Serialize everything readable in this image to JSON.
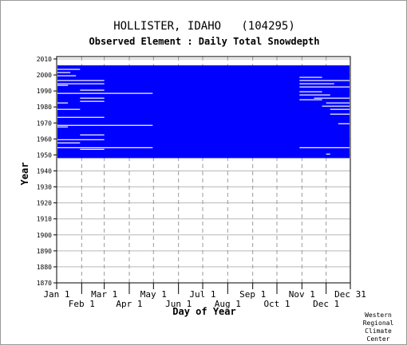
{
  "chart_data": {
    "type": "heatmap",
    "title": "HOLLISTER, IDAHO   (104295)",
    "subtitle": "Observed Element : Daily Total Snowdepth",
    "xlabel": "Day of Year",
    "ylabel": "Year",
    "x_range_day_of_year": [
      1,
      365
    ],
    "ylim": [
      1870,
      2010
    ],
    "y_ticks": [
      1870,
      1880,
      1890,
      1900,
      1910,
      1920,
      1930,
      1940,
      1950,
      1960,
      1970,
      1980,
      1990,
      2000,
      2010
    ],
    "x_ticks_upper": [
      {
        "label": "Jan 1",
        "day": 1
      },
      {
        "label": "Mar 1",
        "day": 60
      },
      {
        "label": "May 1",
        "day": 121
      },
      {
        "label": "Jul 1",
        "day": 182
      },
      {
        "label": "Sep 1",
        "day": 244
      },
      {
        "label": "Nov 1",
        "day": 305
      },
      {
        "label": "Dec 31",
        "day": 365
      }
    ],
    "x_ticks_lower": [
      {
        "label": "Feb 1",
        "day": 32
      },
      {
        "label": "Apr 1",
        "day": 91
      },
      {
        "label": "Jun 1",
        "day": 152
      },
      {
        "label": "Aug 1",
        "day": 213
      },
      {
        "label": "Oct 1",
        "day": 274
      },
      {
        "label": "Dec 1",
        "day": 335
      }
    ],
    "grid": true,
    "data_color": "#0000ff",
    "coverage": {
      "start_year": 1948,
      "end_year": 2005
    },
    "gaps": [
      {
        "year": 2003,
        "day_start": 1,
        "day_end": 30
      },
      {
        "year": 2001,
        "day_start": 1,
        "day_end": 18
      },
      {
        "year": 1999,
        "day_start": 1,
        "day_end": 25
      },
      {
        "year": 1996,
        "day_start": 1,
        "day_end": 60
      },
      {
        "year": 1994,
        "day_start": 1,
        "day_end": 60
      },
      {
        "year": 1993,
        "day_start": 1,
        "day_end": 15
      },
      {
        "year": 1990,
        "day_start": 30,
        "day_end": 60
      },
      {
        "year": 1988,
        "day_start": 1,
        "day_end": 120
      },
      {
        "year": 1985,
        "day_start": 30,
        "day_end": 60
      },
      {
        "year": 1983,
        "day_start": 30,
        "day_end": 60
      },
      {
        "year": 1982,
        "day_start": 1,
        "day_end": 15
      },
      {
        "year": 1978,
        "day_start": 1,
        "day_end": 30
      },
      {
        "year": 1973,
        "day_start": 1,
        "day_end": 60
      },
      {
        "year": 1968,
        "day_start": 1,
        "day_end": 120
      },
      {
        "year": 1967,
        "day_start": 1,
        "day_end": 15
      },
      {
        "year": 1962,
        "day_start": 30,
        "day_end": 60
      },
      {
        "year": 1959,
        "day_start": 1,
        "day_end": 60
      },
      {
        "year": 1957,
        "day_start": 1,
        "day_end": 30
      },
      {
        "year": 1954,
        "day_start": 1,
        "day_end": 120
      },
      {
        "year": 1953,
        "day_start": 30,
        "day_end": 60
      },
      {
        "year": 1998,
        "day_start": 302,
        "day_end": 330
      },
      {
        "year": 1996,
        "day_start": 302,
        "day_end": 365
      },
      {
        "year": 1994,
        "day_start": 302,
        "day_end": 345
      },
      {
        "year": 1992,
        "day_start": 302,
        "day_end": 365
      },
      {
        "year": 1989,
        "day_start": 302,
        "day_end": 330
      },
      {
        "year": 1987,
        "day_start": 302,
        "day_end": 340
      },
      {
        "year": 1985,
        "day_start": 320,
        "day_end": 365
      },
      {
        "year": 1984,
        "day_start": 302,
        "day_end": 330
      },
      {
        "year": 1982,
        "day_start": 335,
        "day_end": 365
      },
      {
        "year": 1980,
        "day_start": 330,
        "day_end": 365
      },
      {
        "year": 1978,
        "day_start": 340,
        "day_end": 365
      },
      {
        "year": 1975,
        "day_start": 340,
        "day_end": 365
      },
      {
        "year": 1969,
        "day_start": 350,
        "day_end": 365
      },
      {
        "year": 1954,
        "day_start": 302,
        "day_end": 365
      },
      {
        "year": 1950,
        "day_start": 335,
        "day_end": 340
      }
    ]
  }
}
